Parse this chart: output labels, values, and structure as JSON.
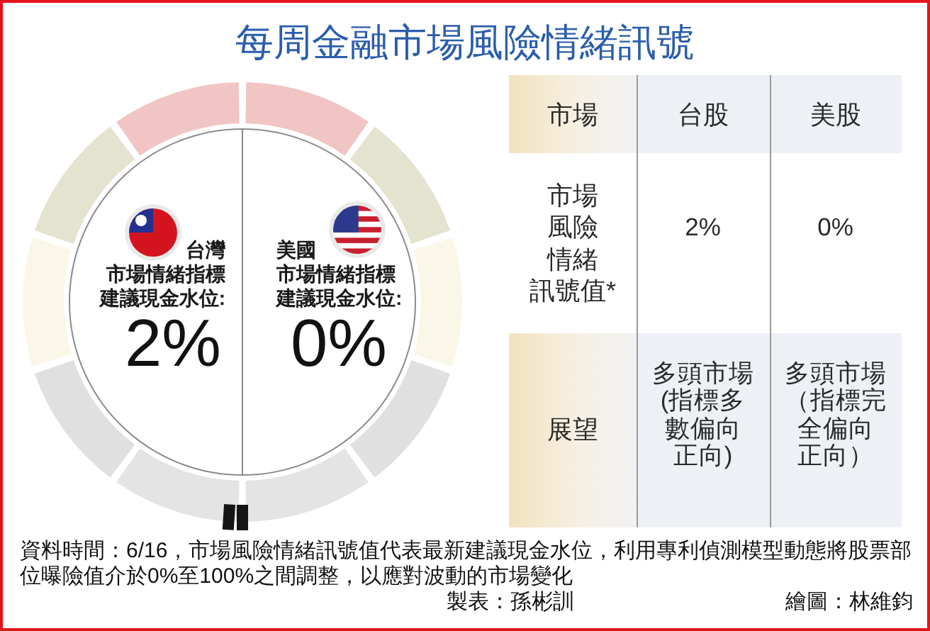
{
  "chart_data": [
    {
      "type": "other",
      "title": "每周金融市場風險情緒訊號",
      "categories": [
        "台灣",
        "美國"
      ],
      "ylabel": "市場情緒指標建議現金水位:",
      "values": [
        2,
        0
      ],
      "value_labels": [
        "2%",
        "0%"
      ],
      "annotations": [
        "資料時間：6/16，市場風險情緒訊號值代表最新建議現金水位，利用專利偵測模型動態將股票部位曝險值介於0%至100%之間調整，以應對波動的市場變化",
        "製表：孫彬訓",
        "繪圖：林維鈞"
      ]
    },
    {
      "type": "other",
      "categories": [
        "台股",
        "美股"
      ],
      "y_categories": [
        "市場風險情緒訊號值*",
        "展望"
      ],
      "cell_labels": [
        [
          "2%",
          "0%"
        ],
        [
          "多頭市場(指標多數偏向正向)",
          "多頭市場（指標完全偏向正向）"
        ]
      ],
      "annotations": [
        "市場"
      ]
    }
  ]
}
